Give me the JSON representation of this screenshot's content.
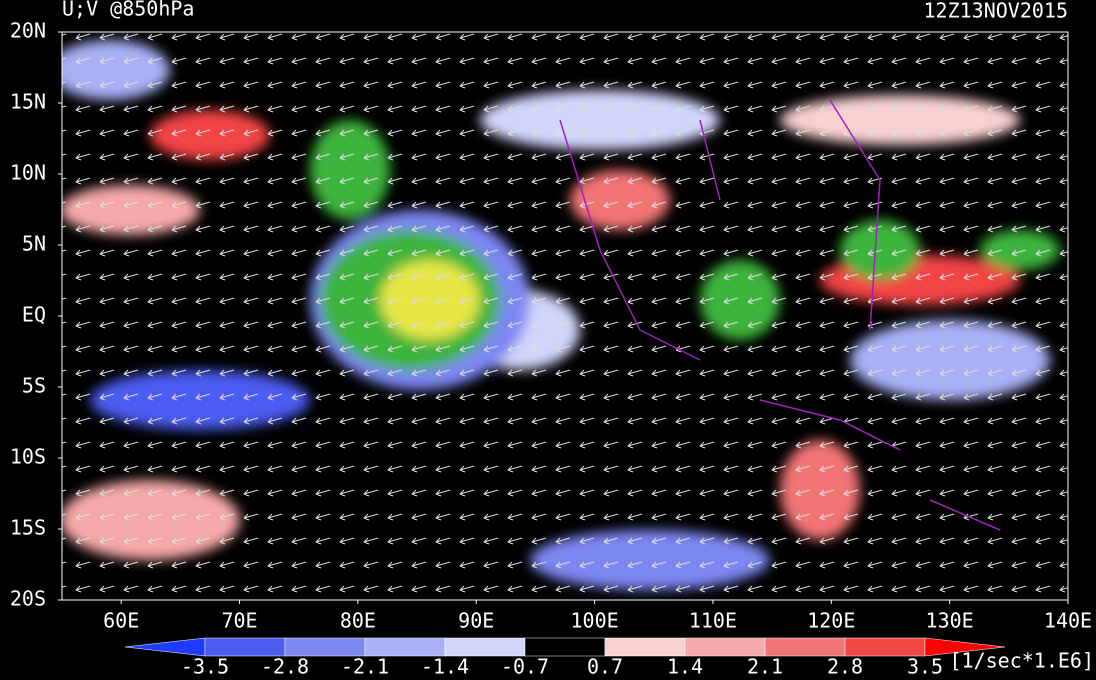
{
  "header": {
    "title": "U;V @850hPa",
    "time": "12Z13NOV2015"
  },
  "lat_labels": [
    "20N",
    "15N",
    "10N",
    "5N",
    "EQ",
    "5S",
    "10S",
    "15S",
    "20S"
  ],
  "lon_labels": [
    "60E",
    "70E",
    "80E",
    "90E",
    "100E",
    "110E",
    "120E",
    "130E",
    "140E"
  ],
  "colorbar": {
    "ticks": [
      -3.5,
      -2.8,
      -2.1,
      -1.4,
      -0.7,
      0.7,
      1.4,
      2.1,
      2.8,
      3.5
    ],
    "colors": [
      "#1e3cff",
      "#4b5cf0",
      "#7d87f2",
      "#a9b0f5",
      "#d2d6fb",
      "#000000",
      "#f9d1d1",
      "#f6a9a9",
      "#f27575",
      "#f24545",
      "#ff0000"
    ],
    "units": "[1/sec*1.E6]"
  }
}
